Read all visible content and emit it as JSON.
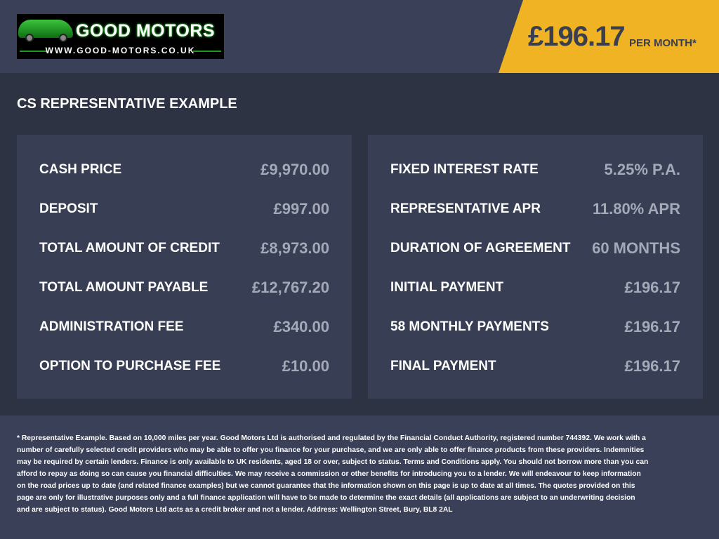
{
  "header": {
    "logo": {
      "brand": "GOOD MOTORS",
      "url": "WWW.GOOD-MOTORS.CO.UK"
    },
    "monthly_price": "£196.17",
    "per_month_label": "PER MONTH*"
  },
  "colors": {
    "accent": "#f0b323",
    "header_bg": "#394058",
    "panel_bg": "#383e54",
    "value_text": "#a4a9b8"
  },
  "title": "CS REPRESENTATIVE EXAMPLE",
  "left_panel": [
    {
      "label": "CASH PRICE",
      "value": "£9,970.00"
    },
    {
      "label": "DEPOSIT",
      "value": "£997.00"
    },
    {
      "label": "TOTAL AMOUNT OF CREDIT",
      "value": "£8,973.00"
    },
    {
      "label": "TOTAL AMOUNT PAYABLE",
      "value": "£12,767.20"
    },
    {
      "label": "ADMINISTRATION FEE",
      "value": "£340.00"
    },
    {
      "label": "OPTION TO PURCHASE FEE",
      "value": "£10.00"
    }
  ],
  "right_panel": [
    {
      "label": "FIXED INTEREST RATE",
      "value": "5.25% P.A."
    },
    {
      "label": "REPRESENTATIVE APR",
      "value": "11.80% APR"
    },
    {
      "label": "DURATION OF AGREEMENT",
      "value": "60 MONTHS"
    },
    {
      "label": "INITIAL PAYMENT",
      "value": "£196.17"
    },
    {
      "label": "58 MONTHLY PAYMENTS",
      "value": "£196.17"
    },
    {
      "label": "FINAL PAYMENT",
      "value": "£196.17"
    }
  ],
  "footer": {
    "disclaimer": "* Representative Example. Based on 10,000 miles per year. Good Motors Ltd is authorised and regulated by the Financial Conduct Authority, registered number 744392. We work with a number of carefully selected credit providers who may be able to offer you finance for your purchase, and we are only able to offer finance products from these providers. Indemnities may be required by certain lenders. Finance is only available to UK residents, aged 18 or over, subject to status. Terms and Conditions apply. You should not borrow more than you can afford to repay as doing so can cause you financial difficulties. We may receive a commission or other benefits for introducing you to a lender. We will endeavour to keep information on the road prices up to date (and related finance examples) but we cannot guarantee that the information shown on this page is up to date at all times. The quotes provided on this page are only for illustrative purposes only and a full finance application will have to be made to determine the exact details (all applications are subject to an underwriting decision and are subject to status). Good Motors Ltd acts as a credit broker and not a lender. Address: Wellington Street, Bury, BL8 2AL"
  }
}
